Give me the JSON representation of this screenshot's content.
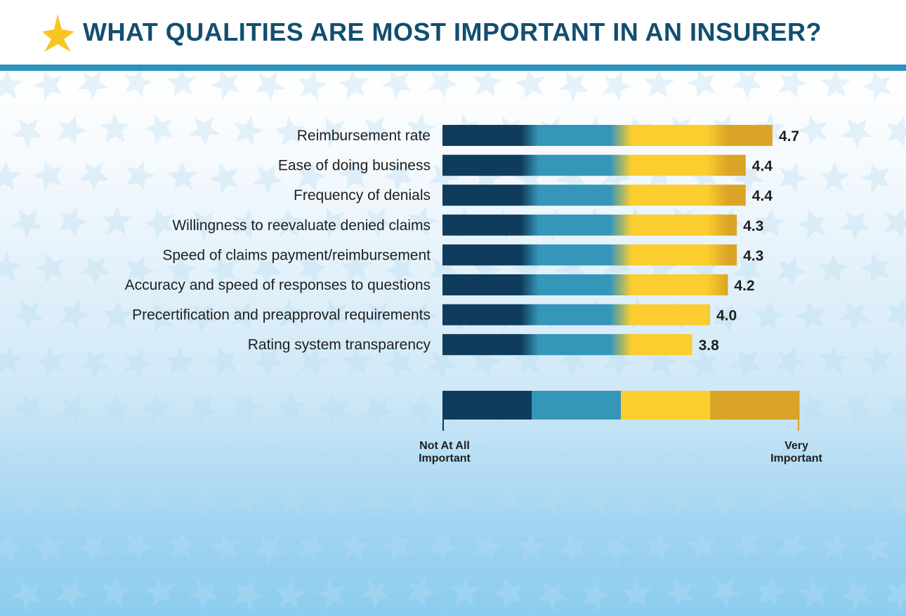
{
  "title": "WHAT QUALITIES ARE MOST IMPORTANT IN AN INSURER?",
  "colors": {
    "title": "#124e70",
    "header_rule": "#2a93bf",
    "star": "#f7c623",
    "scale_dark_navy": "#0f3c5c",
    "scale_teal": "#3696ba",
    "scale_yellow": "#fccd2e",
    "scale_gold": "#daa426",
    "background_star": "#b7dcf0"
  },
  "icons": {
    "title_icon": "star-icon"
  },
  "chart_data": {
    "type": "bar",
    "orientation": "horizontal",
    "title": "WHAT QUALITIES ARE MOST IMPORTANT IN AN INSURER?",
    "categories": [
      "Reimbursement rate",
      "Ease of doing business",
      "Frequency of denials",
      "Willingness to reevaluate denied claims",
      "Speed of claims payment/reimbursement",
      "Accuracy and speed of responses to questions",
      "Precertification and preapproval requirements",
      "Rating system transparency"
    ],
    "values": [
      4.7,
      4.4,
      4.4,
      4.3,
      4.3,
      4.2,
      4.0,
      3.8
    ],
    "value_labels": [
      "4.7",
      "4.4",
      "4.4",
      "4.3",
      "4.3",
      "4.2",
      "4.0",
      "3.8"
    ],
    "xlim": [
      1,
      5
    ],
    "grid": false,
    "legend": {
      "type": "color-scale",
      "placement": "below",
      "low_label": "Not At All Important",
      "high_label": "Very Important",
      "steps": 4
    }
  }
}
